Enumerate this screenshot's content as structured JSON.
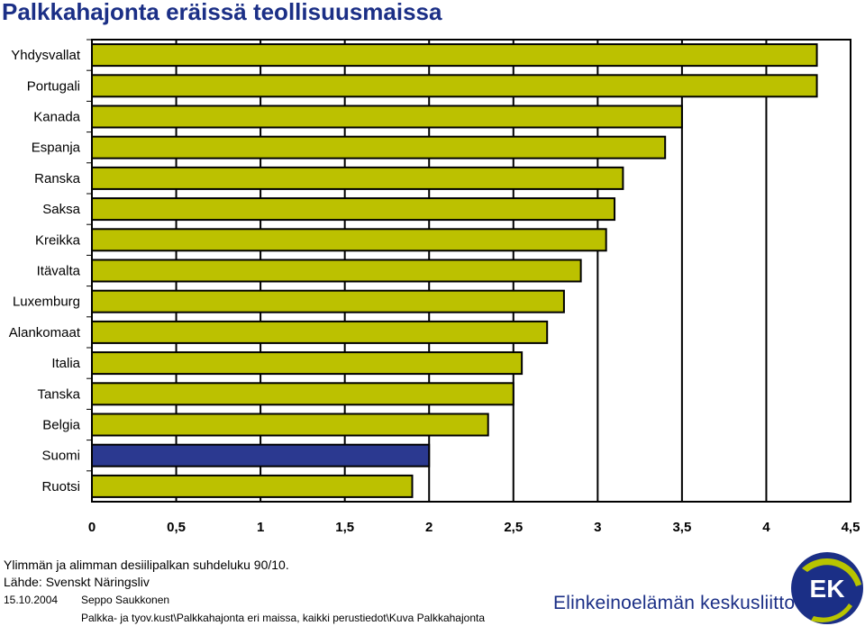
{
  "title": "Palkkahajonta eräissä teollisuusmaissa",
  "footnote": "Ylimmän ja alimman desiilipalkan suhdeluku 90/10.",
  "source": "Lähde: Svenskt Näringsliv",
  "footer": {
    "date": "15.10.2004",
    "author": "Seppo Saukkonen",
    "path": "Palkka- ja tyov.kust\\Palkkahajonta eri maissa, kaikki perustiedot\\Kuva Palkkahajonta",
    "brand": "Elinkeinoelämän keskusliitto",
    "logo_text": "EK"
  },
  "colors": {
    "bar": "#bcc100",
    "highlight": "#2b3990",
    "title": "#1b2f86",
    "logo": "#1b2f86",
    "logo_accent": "#b8c400"
  },
  "chart_data": {
    "type": "bar",
    "orientation": "horizontal",
    "categories": [
      "Yhdysvallat",
      "Portugali",
      "Kanada",
      "Espanja",
      "Ranska",
      "Saksa",
      "Kreikka",
      "Itävalta",
      "Luxemburg",
      "Alankomaat",
      "Italia",
      "Tanska",
      "Belgia",
      "Suomi",
      "Ruotsi"
    ],
    "values": [
      4.3,
      4.3,
      3.5,
      3.4,
      3.15,
      3.1,
      3.05,
      2.9,
      2.8,
      2.7,
      2.55,
      2.5,
      2.35,
      2.0,
      1.9
    ],
    "highlight": "Suomi",
    "xlim": [
      0,
      4.5
    ],
    "xticks": [
      "0",
      "0,5",
      "1",
      "1,5",
      "2",
      "2,5",
      "3",
      "3,5",
      "4",
      "4,5"
    ],
    "grid": "vertical",
    "xlabel": "",
    "ylabel": ""
  }
}
